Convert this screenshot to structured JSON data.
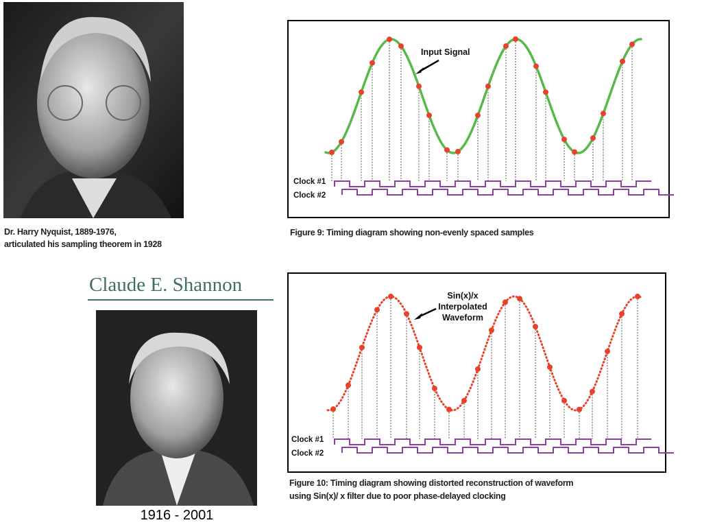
{
  "nyquist": {
    "caption": [
      "Dr. Harry Nyquist, 1889-1976,",
      "articulated his sampling theorem in 1928"
    ]
  },
  "figure9": {
    "annotation": "Input Signal",
    "clock_labels": [
      "Clock #1",
      "Clock #2"
    ],
    "caption": "Figure 9: Timing diagram showing non-evenly spaced samples"
  },
  "shannon": {
    "name": "Claude E. Shannon",
    "years": "1916 - 2001"
  },
  "figure10": {
    "annotation": [
      "Sin(x)/x",
      "Interpolated",
      "Waveform"
    ],
    "clock_labels": [
      "Clock #1",
      "Clock #2"
    ],
    "caption": [
      "Figure 10: Timing diagram showing distorted reconstruction of waveform",
      "using Sin(x)/ x filter due to poor phase-delayed clocking"
    ]
  }
}
